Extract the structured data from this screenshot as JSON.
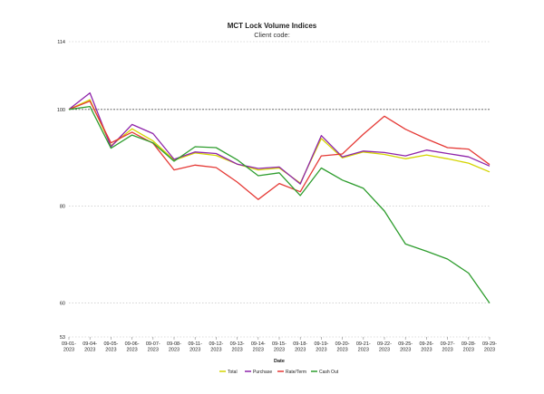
{
  "chart_data": {
    "type": "line",
    "title": "MCT Lock Volume Indices",
    "subtitle": "Client code:",
    "xlabel": "Date",
    "ylabel": "",
    "ylim": [
      53,
      114
    ],
    "yticks": [
      53,
      60,
      80,
      100,
      114
    ],
    "reference_line": 100,
    "categories": [
      "09-01-2023",
      "09-04-2023",
      "09-05-2023",
      "09-06-2023",
      "09-07-2023",
      "09-08-2023",
      "09-11-2023",
      "09-12-2023",
      "09-13-2023",
      "09-14-2023",
      "09-15-2023",
      "09-18-2023",
      "09-19-2023",
      "09-20-2023",
      "09-21-2023",
      "09-22-2023",
      "09-25-2023",
      "09-26-2023",
      "09-27-2023",
      "09-28-2023",
      "09-29-2023"
    ],
    "series": [
      {
        "name": "Total",
        "color": "#d4d400",
        "values": [
          100,
          102.0,
          92.5,
          96.0,
          93.5,
          89.5,
          91.0,
          90.5,
          88.7,
          87.5,
          87.9,
          84.8,
          94.0,
          90.0,
          91.2,
          90.7,
          89.8,
          90.6,
          89.8,
          88.9,
          87.1
        ]
      },
      {
        "name": "Purchase",
        "color": "#8e24aa",
        "values": [
          100,
          103.4,
          92.3,
          96.9,
          95.0,
          89.7,
          91.2,
          90.9,
          88.7,
          87.8,
          88.1,
          84.6,
          94.6,
          90.2,
          91.4,
          91.1,
          90.4,
          91.6,
          90.9,
          90.2,
          88.3
        ]
      },
      {
        "name": "Rate/Term",
        "color": "#e53935",
        "values": [
          100,
          101.7,
          93.1,
          95.3,
          93.0,
          87.5,
          88.5,
          88.0,
          85.0,
          81.4,
          84.7,
          83.0,
          90.4,
          90.8,
          94.9,
          98.6,
          95.9,
          93.9,
          92.1,
          91.8,
          88.6
        ]
      },
      {
        "name": "Cash Out",
        "color": "#2e9d2e",
        "values": [
          100,
          100.6,
          92.0,
          94.7,
          93.1,
          89.3,
          92.3,
          92.1,
          89.6,
          86.3,
          86.9,
          82.2,
          87.9,
          85.4,
          83.7,
          79.0,
          72.2,
          70.7,
          69.1,
          66.2,
          60.0
        ]
      }
    ],
    "legend_position": "bottom",
    "grid": "dashed horizontal lines at y ticks"
  }
}
